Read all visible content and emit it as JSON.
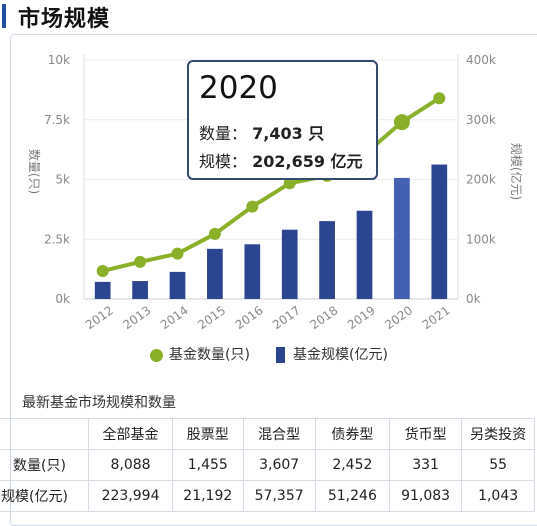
{
  "header": {
    "title": "市场规模"
  },
  "chart_data": {
    "type": "bar+line",
    "categories": [
      "2012",
      "2013",
      "2014",
      "2015",
      "2016",
      "2017",
      "2018",
      "2019",
      "2020",
      "2021"
    ],
    "series": [
      {
        "name": "基金数量(只)",
        "type": "line",
        "axis": "left",
        "values": [
          1173,
          1552,
          1897,
          2723,
          3867,
          4841,
          5153,
          6048,
          7403,
          8400
        ]
      },
      {
        "name": "基金规模(亿元)",
        "type": "bar",
        "axis": "right",
        "values": [
          28662,
          30021,
          45354,
          83972,
          91593,
          115996,
          130347,
          147673,
          202659,
          225000
        ]
      }
    ],
    "ylabel_left": "数量(只)",
    "ylabel_right": "规模(亿元)",
    "yticks_left": [
      "0k",
      "2.5k",
      "5k",
      "7.5k",
      "10k"
    ],
    "yticks_right": [
      "0k",
      "100k",
      "200k",
      "300k",
      "400k"
    ],
    "ylim_left": [
      0,
      10000
    ],
    "ylim_right": [
      0,
      400000
    ],
    "highlight_category": "2020",
    "colors": {
      "line": "#8ab02a",
      "bar": "#2b4590",
      "bar_highlight": "#4361b0"
    },
    "grid": true,
    "legend": "bottom",
    "tooltip": {
      "year": "2020",
      "count_label": "数量：",
      "count_value": "7,403 只",
      "scale_label": "规模：",
      "scale_value": "202,659 亿元"
    }
  },
  "table": {
    "title": "最新基金市场规模和数量",
    "headers": [
      "",
      "全部基金",
      "股票型",
      "混合型",
      "债券型",
      "货币型",
      "另类投资"
    ],
    "rows": [
      {
        "label": "数量(只)",
        "values": [
          "8,088",
          "1,455",
          "3,607",
          "2,452",
          "331",
          "55"
        ]
      },
      {
        "label": "规模(亿元)",
        "values": [
          "223,994",
          "21,192",
          "57,357",
          "51,246",
          "91,083",
          "1,043"
        ]
      }
    ]
  }
}
